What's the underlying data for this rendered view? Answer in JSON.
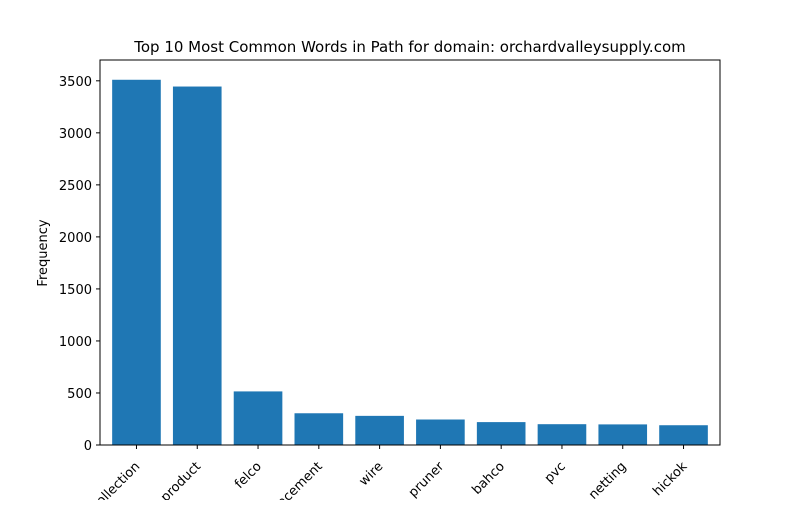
{
  "chart_data": {
    "type": "bar",
    "title": "Top 10 Most Common Words in Path for domain: orchardvalleysupply.com",
    "xlabel": "",
    "ylabel": "Frequency",
    "categories": [
      "collection",
      "product",
      "felco",
      "replacement",
      "wire",
      "pruner",
      "bahco",
      "pvc",
      "netting",
      "hickok"
    ],
    "values": [
      3510,
      3445,
      515,
      305,
      280,
      245,
      220,
      200,
      198,
      190
    ],
    "ylim": [
      0,
      3700
    ],
    "yticks": [
      0,
      500,
      1000,
      1500,
      2000,
      2500,
      3000,
      3500
    ],
    "bar_color": "#1f77b4",
    "grid": false,
    "legend": "none"
  }
}
